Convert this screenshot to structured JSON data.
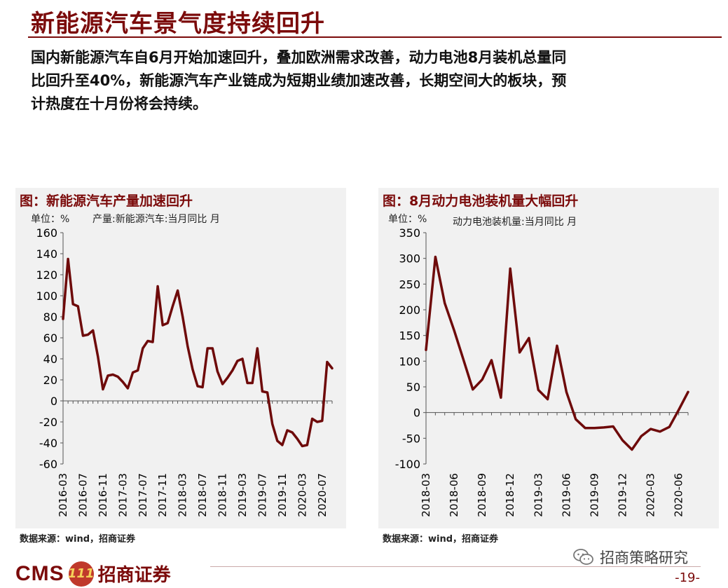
{
  "page": {
    "title": "新能源汽车景气度持续回升",
    "summary_lines": [
      "国内新能源汽车自6月开始加速回升，叠加欧洲需求改善，动力电池8月装机总量同",
      "比回升至40%，新能源汽车产业链成为短期业绩加速改善，长期空间大的板块，预",
      "计热度在十月份将会持续。"
    ],
    "page_number": "-19-",
    "watermark": "招商策略研究",
    "logo_cms": "CMS",
    "logo_badge": "111",
    "logo_name": "招商证券"
  },
  "left_panel": {
    "title": "图：新能源汽车产量加速回升",
    "unit": "单位：%",
    "series_note": "产量:新能源汽车:当月同比  月",
    "source": "数据来源：wind，招商证券"
  },
  "right_panel": {
    "title": "图：8月动力电池装机量大幅回升",
    "unit": "单位：%",
    "series_note": "动力电池装机量:当月同比  月",
    "source": "数据来源：wind，招商证券"
  },
  "colors": {
    "accent": "#7b0a0a",
    "line": "#6e0a0a",
    "panel_bg": "#f1f1f1"
  },
  "chart_data": [
    {
      "type": "line",
      "title": "图：新能源汽车产量加速回升",
      "ylabel": "单位：%",
      "ylim": [
        -60,
        160
      ],
      "yticks": [
        -60,
        -40,
        -20,
        0,
        20,
        40,
        60,
        80,
        100,
        120,
        140,
        160
      ],
      "xticks": [
        "2016-03",
        "2016-07",
        "2016-11",
        "2017-03",
        "2017-07",
        "2017-11",
        "2018-03",
        "2018-07",
        "2018-11",
        "2019-03",
        "2019-07",
        "2019-11",
        "2020-03",
        "2020-07"
      ],
      "x_start": "2016-03",
      "series": [
        {
          "values": [
            78,
            135,
            92,
            90,
            62,
            63,
            67,
            42,
            11,
            24,
            25,
            23,
            18,
            12,
            27,
            29,
            50,
            57,
            56,
            109,
            72,
            74,
            90,
            105,
            80,
            52,
            30,
            14,
            13,
            50,
            50,
            28,
            16,
            22,
            29,
            38,
            40,
            17,
            17,
            50,
            9,
            8,
            -22,
            -38,
            -42,
            -28,
            -30,
            -36,
            -43,
            -42,
            -17,
            -20,
            -19,
            37,
            31
          ]
        }
      ]
    },
    {
      "type": "line",
      "title": "图：8月动力电池装机量大幅回升",
      "ylabel": "单位：%",
      "ylim": [
        -100,
        350
      ],
      "yticks": [
        -100,
        -50,
        0,
        50,
        100,
        150,
        200,
        250,
        300,
        350
      ],
      "xticks": [
        "2018-03",
        "2018-06",
        "2018-09",
        "2018-12",
        "2019-03",
        "2019-06",
        "2019-09",
        "2019-12",
        "2020-03",
        "2020-06"
      ],
      "x_start": "2018-03",
      "series": [
        {
          "values": [
            122,
            303,
            213,
            160,
            103,
            45,
            64,
            102,
            29,
            280,
            117,
            145,
            44,
            26,
            130,
            40,
            -13,
            -30,
            -30,
            -29,
            -27,
            -54,
            -72,
            -46,
            -32,
            -37,
            -28,
            5,
            40
          ]
        }
      ]
    }
  ]
}
